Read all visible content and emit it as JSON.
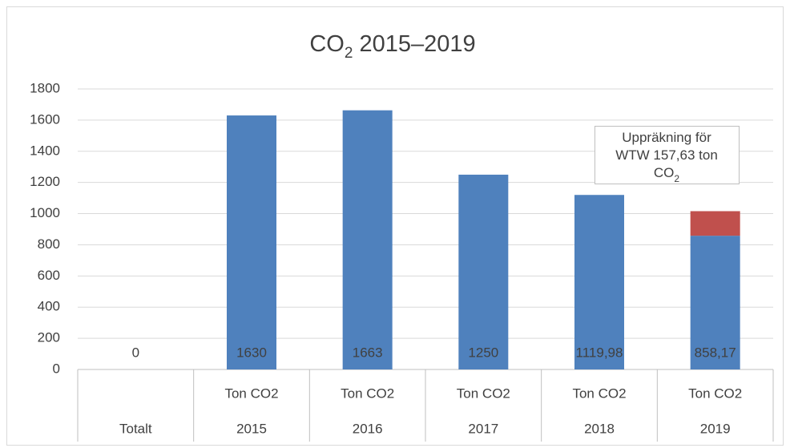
{
  "chart_data": {
    "type": "bar",
    "stacked": true,
    "title_parts": [
      "CO",
      "2",
      " 2015–2019"
    ],
    "categories": [
      "Totalt",
      "2015",
      "2016",
      "2017",
      "2018",
      "2019"
    ],
    "subcategories": [
      null,
      "Ton CO2",
      "Ton CO2",
      "Ton CO2",
      "Ton CO2",
      "Ton CO2"
    ],
    "series": [
      {
        "color": "#4f81bd",
        "values": [
          0,
          1630,
          1663,
          1250,
          1119.98,
          858.17
        ],
        "value_labels": [
          "0",
          "1630",
          "1663",
          "1250",
          "1119,98",
          "858,17"
        ]
      },
      {
        "color": "#c0504d",
        "values": [
          null,
          null,
          null,
          null,
          null,
          157.63
        ]
      }
    ],
    "annotation_lines": [
      [
        "Uppräkning för"
      ],
      [
        "WTW 157,63 ton"
      ],
      [
        "CO",
        "2"
      ]
    ],
    "ylim": [
      0,
      1800
    ],
    "yticks": [
      0,
      200,
      400,
      600,
      800,
      1000,
      1200,
      1400,
      1600,
      1800
    ],
    "grid": true
  }
}
